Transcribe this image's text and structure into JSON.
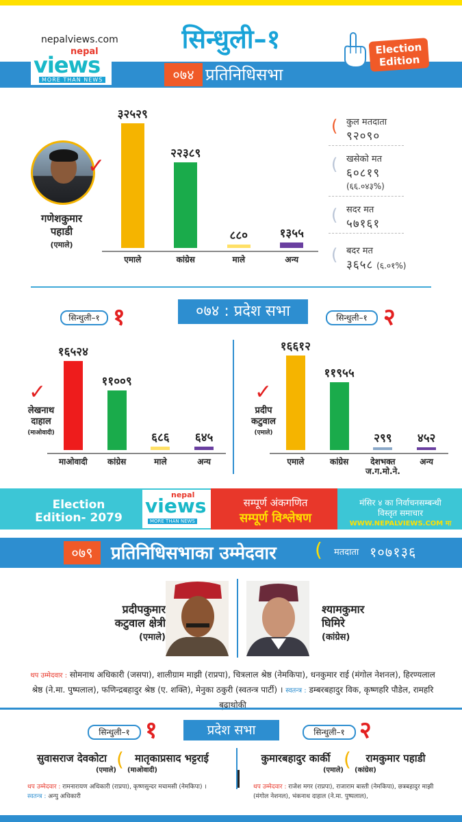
{
  "header": {
    "site": "nepalviews.com",
    "logo_top": "nepal",
    "logo_main": "views",
    "logo_tag": "MORE THAN NEWS",
    "title": "सिन्धुली–१",
    "badge_line1": "Election",
    "badge_line2": "Edition"
  },
  "hor2074": {
    "year": "०७४",
    "label": "प्रतिनिधिसभा",
    "winner_name_1": "गणेशकुमार",
    "winner_name_2": "पहाडी",
    "winner_party": "(एमाले)",
    "chart_data": {
      "type": "bar",
      "categories": [
        "एमाले",
        "कांग्रेस",
        "माले",
        "अन्य"
      ],
      "values": [
        32529,
        22389,
        880,
        1355
      ],
      "value_labels": [
        "३२५२९",
        "२२३८९",
        "८८०",
        "१३५५"
      ],
      "colors": [
        "#f5b400",
        "#1aab4b",
        "#ffe066",
        "#6a3fa0"
      ],
      "ylim": [
        0,
        32529
      ]
    },
    "stats": [
      {
        "label": "कुल मतदाता",
        "value": "९२०९०",
        "sub": ""
      },
      {
        "label": "खसेको मत",
        "value": "६०८१९",
        "sub": "(६६.०४३%)"
      },
      {
        "label": "सदर मत",
        "value": "५७१६१",
        "sub": ""
      },
      {
        "label": "बदर मत",
        "value": "३६५८",
        "sub": "(६.०१%)"
      }
    ]
  },
  "province2074": {
    "label": "०७४ : प्रदेश सभा",
    "left": {
      "district": "सिन्धुली–१",
      "number": "१",
      "winner_1": "लेखनाथ",
      "winner_2": "दाहाल",
      "party": "(माओवादी)",
      "chart_data": {
        "type": "bar",
        "categories": [
          "माओवादी",
          "कांग्रेस",
          "माले",
          "अन्य"
        ],
        "values": [
          16524,
          11009,
          686,
          645
        ],
        "value_labels": [
          "१६५२४",
          "११००९",
          "६८६",
          "६४५"
        ],
        "colors": [
          "#ee1c1c",
          "#1aab4b",
          "#ffe066",
          "#6a3fa0"
        ],
        "ylim": [
          0,
          16524
        ]
      }
    },
    "right": {
      "district": "सिन्धुली–१",
      "number": "२",
      "winner_1": "प्रदीप",
      "winner_2": "कटुवाल",
      "party": "(एमाले)",
      "chart_data": {
        "type": "bar",
        "categories": [
          "एमाले",
          "कांग्रेस",
          "देशभक्त ज.ग.मो.ने.",
          "अन्य"
        ],
        "values": [
          16612,
          11955,
          299,
          452
        ],
        "value_labels": [
          "१६६१२",
          "११९५५",
          "२९९",
          "४५२"
        ],
        "colors": [
          "#f5b400",
          "#1aab4b",
          "#8aa8c8",
          "#6a3fa0"
        ],
        "ylim": [
          0,
          16612
        ]
      }
    }
  },
  "banner": {
    "edition_1": "Election",
    "edition_2": "Edition- 2079",
    "logo_top": "nepal",
    "logo_main": "views",
    "logo_tag": "MORE THAN NEWS",
    "analysis_1": "सम्पूर्ण अंकगणित",
    "analysis_2": "सम्पूर्ण विश्लेषण",
    "news_1": "मंसिर ४ का निर्वाचनसम्बन्धी",
    "news_2": "विस्तृत समाचार",
    "url": "WWW.NEPALVIEWS.COM मा"
  },
  "hor2079": {
    "year": "०७९",
    "label": "प्रतिनिधिसभाका उम्मेदवार",
    "voters_label": "मतदाता",
    "voters_value": "१०७१३६",
    "cand_left_1": "प्रदीपकुमार",
    "cand_left_2": "कटुवाल क्षेत्री",
    "cand_left_party": "(एमाले)",
    "cand_right_1": "श्यामकुमार",
    "cand_right_2": "घिमिरे",
    "cand_right_party": "(कांग्रेस)",
    "others_label": "थप उम्मेदवार :",
    "others_text": "सोमनाथ अधिकारी (जसपा), शालीग्राम माझी (राप्रपा), चित्रलाल श्रेष्ठ (नेमकिपा), धनकुमार राई (मंगोल नेशनल), हिरण्यलाल श्रेष्ठ (ने.मा. पुष्पलाल), फणिन्द्रबहादुर श्रेष्ठ (ए. शक्ति), मेनुका ठकुरी (स्वतन्त्र पार्टी) ।",
    "independent_label": "स्वतन्त्र :",
    "independent_text": "डम्बरबहादुर विक, कृष्णहरि पौडेल, रामहरि बुढाथोकी"
  },
  "province2079": {
    "label": "प्रदेश सभा",
    "left": {
      "district": "सिन्धुली–१",
      "number": "१",
      "cand_1": "सुवासराज देवकोटा",
      "cand_1_party": "(एमाले)",
      "cand_2": "मातृकाप्रसाद भट्टराई",
      "cand_2_party": "(माओवादी)",
      "others_label": "थप उम्मेदवार :",
      "others_text": "रामनारायण अधिकारी (राप्रपा), कृष्णसुन्दर मचामसी (नेमकिपा) ।",
      "independent_label": "स्वतन्त्र :",
      "independent_text": "अन्पु अधिकारी"
    },
    "right": {
      "district": "सिन्धुली–१",
      "number": "२",
      "cand_1": "कुमारबहादुर कार्की",
      "cand_1_party": "(एमाले)",
      "cand_2": "रामकुमार पहाडी",
      "cand_2_party": "(कांग्रेस)",
      "others_label": "थप उम्मेदवार :",
      "others_text": "राजेश मगर (राप्रपा), राजाराम बास्ती (नेमकिपा), छत्रबहादुर माझी (मंगोल नेशनल), भंकनाथ दाहाल (ने.मा. पुष्पलाल),"
    }
  }
}
